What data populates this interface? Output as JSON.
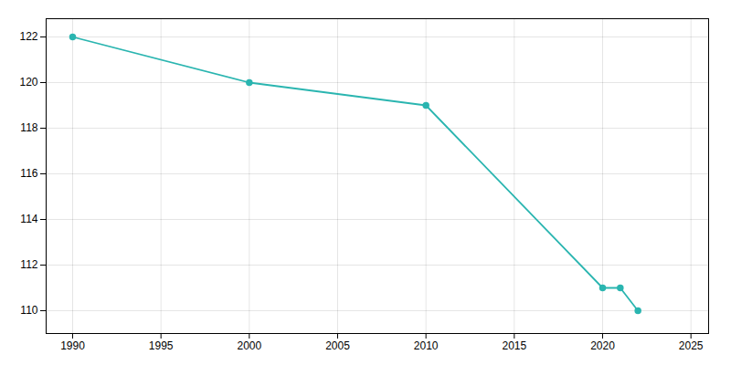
{
  "chart_data": {
    "type": "line",
    "x": [
      1990,
      2000,
      2010,
      2020,
      2021,
      2022
    ],
    "values": [
      122,
      120,
      119,
      111,
      111,
      110
    ],
    "color": "#2ab5b0",
    "marker": "circle",
    "xlim": [
      1988.5,
      2026
    ],
    "ylim": [
      109.0,
      122.8
    ],
    "xticks": [
      1990,
      1995,
      2000,
      2005,
      2010,
      2015,
      2020,
      2025
    ],
    "yticks": [
      110,
      112,
      114,
      116,
      118,
      120,
      122
    ],
    "grid": true
  }
}
